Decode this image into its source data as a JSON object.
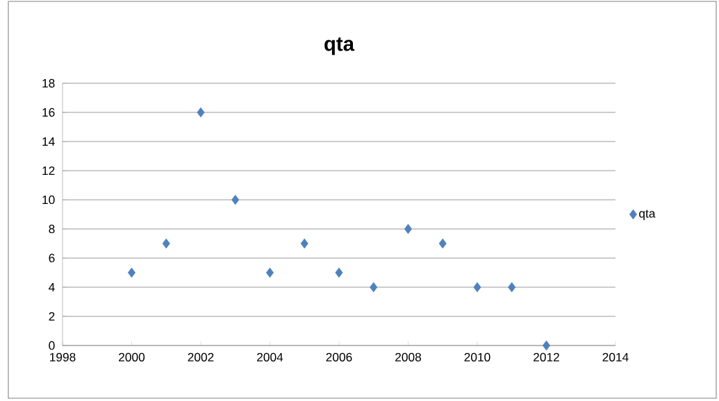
{
  "chart_data": {
    "type": "scatter",
    "title": "qta",
    "x": [
      2000,
      2001,
      2002,
      2003,
      2004,
      2005,
      2006,
      2007,
      2008,
      2009,
      2010,
      2011,
      2012
    ],
    "series": [
      {
        "name": "qta",
        "color": "#4f81bd",
        "values": [
          5,
          7,
          16,
          10,
          5,
          7,
          5,
          4,
          8,
          7,
          4,
          4,
          0
        ]
      }
    ],
    "xlim": [
      1998,
      2014
    ],
    "xticks": [
      1998,
      2000,
      2002,
      2004,
      2006,
      2008,
      2010,
      2012,
      2014
    ],
    "ylim": [
      0,
      18
    ],
    "yticks": [
      0,
      2,
      4,
      6,
      8,
      10,
      12,
      14,
      16,
      18
    ],
    "grid": "y",
    "legend": "right",
    "marker": "diamond"
  }
}
